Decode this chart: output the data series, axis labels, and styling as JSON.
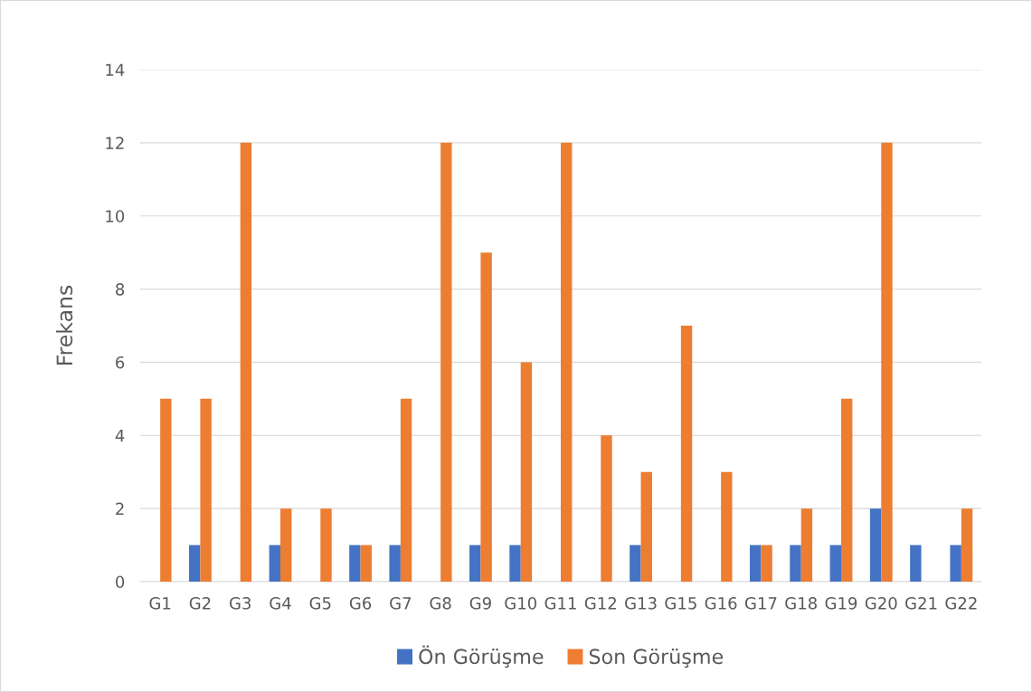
{
  "chart_data": {
    "type": "bar",
    "ylabel": "Frekans",
    "categories": [
      "G1",
      "G2",
      "G3",
      "G4",
      "G5",
      "G6",
      "G7",
      "G8",
      "G9",
      "G10",
      "G11",
      "G12",
      "G13",
      "G15",
      "G16",
      "G17",
      "G18",
      "G19",
      "G20",
      "G21",
      "G22"
    ],
    "series": [
      {
        "name": "Ön Görüşme",
        "color": "#4472c4",
        "values": [
          0,
          1,
          0,
          1,
          0,
          1,
          1,
          0,
          1,
          1,
          0,
          0,
          1,
          0,
          0,
          1,
          1,
          1,
          2,
          1,
          1
        ]
      },
      {
        "name": "Son Görüşme",
        "color": "#ed7d31",
        "values": [
          5,
          5,
          12,
          2,
          2,
          1,
          5,
          12,
          9,
          6,
          12,
          4,
          3,
          7,
          3,
          1,
          2,
          5,
          12,
          0,
          2
        ]
      }
    ],
    "ylim": [
      0,
      14
    ],
    "yticks": [
      0,
      2,
      4,
      6,
      8,
      10,
      12,
      14
    ],
    "grid": "y",
    "legend": "bottom"
  }
}
